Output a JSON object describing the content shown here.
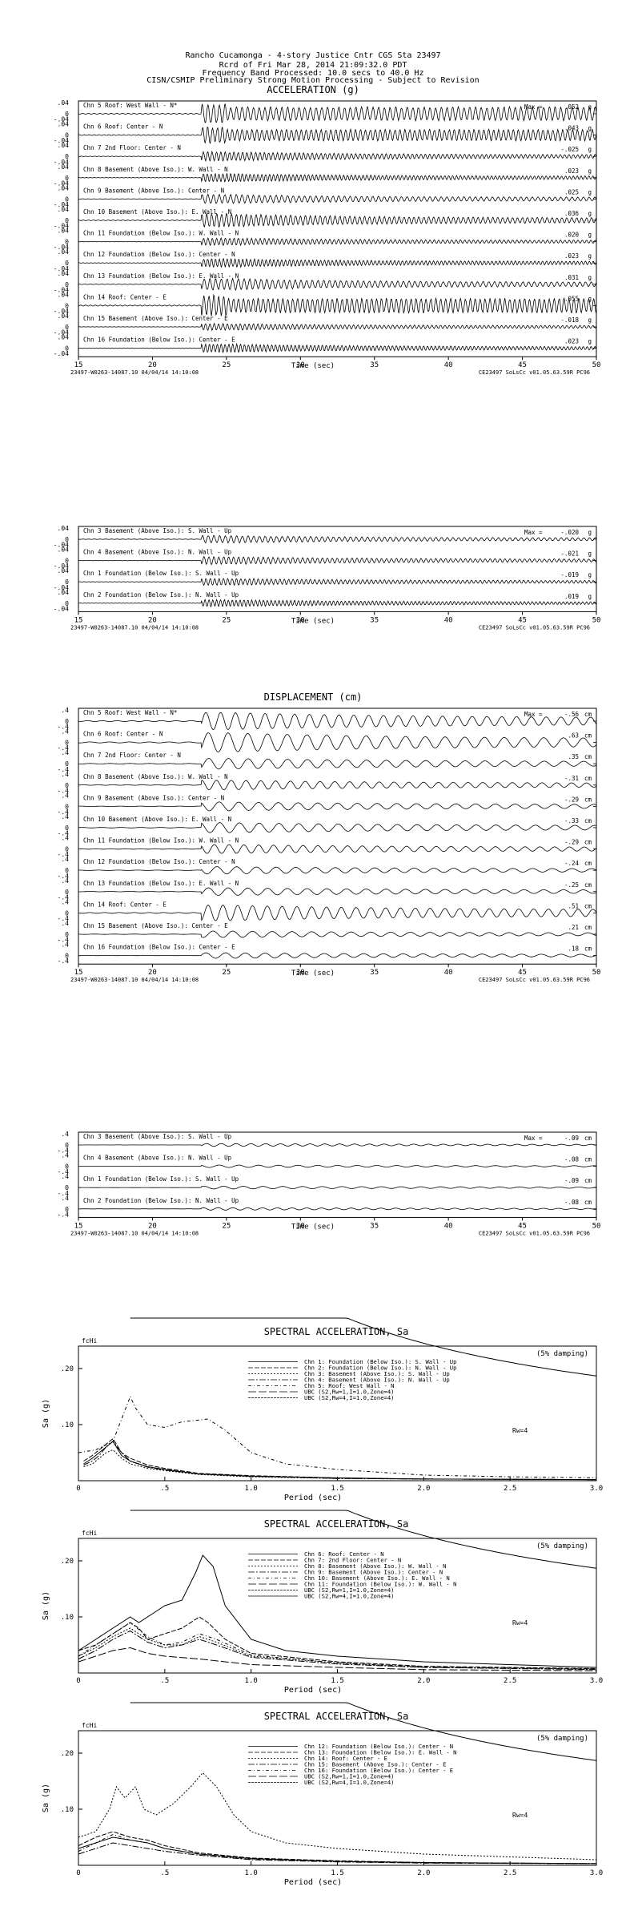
{
  "header": {
    "line1": "Rancho Cucamonga - 4-story Justice Cntr     CGS Sta 23497",
    "line2": "Rcrd of Fri Mar 28, 2014 21:09:32.0 PDT",
    "line3": "Frequency Band Processed: 10.0 secs to 40.0 Hz",
    "line4": "CISN/CSMIP Preliminary Strong Motion Processing - Subject to Revision"
  },
  "common": {
    "footer_left": "23497-W0263-14087.10 04/04/14 14:10:08",
    "footer_right": "CE23497  SoLsCc  v01.05.63.59R PC96",
    "time_label": "Time (sec)",
    "max_label": "Max =",
    "time_ticks": [
      "15",
      "20",
      "25",
      "30",
      "35",
      "40",
      "45",
      "50"
    ]
  },
  "chart_data": [
    {
      "type": "line",
      "title": "ACCELERATION (g)",
      "unit": "g",
      "xlabel": "Time (sec)",
      "xlim": [
        15,
        50
      ],
      "ytick": ".04",
      "channels": [
        {
          "label": "Chn 5  Roof: West Wall - N*",
          "max": ".052"
        },
        {
          "label": "Chn 6  Roof: Center - N",
          "max": ".043"
        },
        {
          "label": "Chn 7  2nd Floor: Center - N",
          "max": "-.025"
        },
        {
          "label": "Chn 8  Basement (Above Iso.): W. Wall - N",
          "max": ".023"
        },
        {
          "label": "Chn 9  Basement (Above Iso.): Center - N",
          "max": ".025"
        },
        {
          "label": "Chn 10  Basement (Above Iso.): E. Wall - N",
          "max": ".036"
        },
        {
          "label": "Chn 11  Foundation (Below Iso.): W. Wall - N",
          "max": ".020"
        },
        {
          "label": "Chn 12  Foundation (Below Iso.): Center - N",
          "max": ".023"
        },
        {
          "label": "Chn 13  Foundation (Below Iso.): E. Wall - N",
          "max": ".031"
        },
        {
          "label": "Chn 14  Roof: Center - E",
          "max": ".055"
        },
        {
          "label": "Chn 15  Basement (Above Iso.): Center - E",
          "max": "-.018"
        },
        {
          "label": "Chn 16  Foundation (Below Iso.): Center - E",
          "max": ".023"
        }
      ]
    },
    {
      "type": "line",
      "title": "",
      "unit": "g",
      "xlabel": "Time (sec)",
      "xlim": [
        15,
        50
      ],
      "ytick": ".04",
      "channels": [
        {
          "label": "Chn 3  Basement (Above Iso.): S. Wall - Up",
          "max": "-.020"
        },
        {
          "label": "Chn 4  Basement (Above Iso.): N. Wall - Up",
          "max": "-.021"
        },
        {
          "label": "Chn 1  Foundation (Below Iso.): S. Wall - Up",
          "max": "-.019"
        },
        {
          "label": "Chn 2  Foundation (Below Iso.): N. Wall - Up",
          "max": ".019"
        }
      ]
    },
    {
      "type": "line",
      "title": "DISPLACEMENT (cm)",
      "unit": "cm",
      "xlabel": "Time (sec)",
      "xlim": [
        15,
        50
      ],
      "ytick": ".4",
      "channels": [
        {
          "label": "Chn 5  Roof: West Wall - N*",
          "max": "-.56"
        },
        {
          "label": "Chn 6  Roof: Center - N",
          "max": ".63"
        },
        {
          "label": "Chn 7  2nd Floor: Center - N",
          "max": ".35"
        },
        {
          "label": "Chn 8  Basement (Above Iso.): W. Wall - N",
          "max": "-.31"
        },
        {
          "label": "Chn 9  Basement (Above Iso.): Center - N",
          "max": "-.29"
        },
        {
          "label": "Chn 10  Basement (Above Iso.): E. Wall - N",
          "max": "-.33"
        },
        {
          "label": "Chn 11  Foundation (Below Iso.): W. Wall - N",
          "max": "-.29"
        },
        {
          "label": "Chn 12  Foundation (Below Iso.): Center - N",
          "max": "-.24"
        },
        {
          "label": "Chn 13  Foundation (Below Iso.): E. Wall - N",
          "max": "-.25"
        },
        {
          "label": "Chn 14  Roof: Center - E",
          "max": ".51"
        },
        {
          "label": "Chn 15  Basement (Above Iso.): Center - E",
          "max": ".21"
        },
        {
          "label": "Chn 16  Foundation (Below Iso.): Center - E",
          "max": ".18"
        }
      ]
    },
    {
      "type": "line",
      "title": "",
      "unit": "cm",
      "xlabel": "Time (sec)",
      "xlim": [
        15,
        50
      ],
      "ytick": ".4",
      "channels": [
        {
          "label": "Chn 3  Basement (Above Iso.): S. Wall - Up",
          "max": "-.09"
        },
        {
          "label": "Chn 4  Basement (Above Iso.): N. Wall - Up",
          "max": "-.08"
        },
        {
          "label": "Chn 1  Foundation (Below Iso.): S. Wall - Up",
          "max": "-.09"
        },
        {
          "label": "Chn 2  Foundation (Below Iso.): N. Wall - Up",
          "max": "-.08"
        }
      ]
    },
    {
      "type": "line",
      "title": "SPECTRAL ACCELERATION, Sa",
      "xlabel": "Period (sec)",
      "ylabel": "Sa (g)",
      "xlim": [
        0,
        3.0
      ],
      "ylim": [
        0,
        0.24
      ],
      "xticks": [
        "0",
        ".5",
        "1.0",
        "1.5",
        "2.0",
        "2.5",
        "3.0"
      ],
      "yticks": [
        ".10",
        ".20"
      ],
      "damping": "(5% damping)",
      "fchi": "fcHi",
      "rw": "Rw=4",
      "legend": [
        "Chn 1: Foundation (Below Iso.): S. Wall - Up",
        "Chn 2: Foundation (Below Iso.): N. Wall - Up",
        "Chn 3: Basement (Above Iso.): S. Wall - Up",
        "Chn 4: Basement (Above Iso.): N. Wall - Up",
        "Chn 5: Roof: West Wall - N",
        "UBC (S2,Rw=1,I=1.0,Zone=4)",
        "UBC (S2,Rw=4,I=1.0,Zone=4)"
      ],
      "series": [
        {
          "x": [
            0.03,
            0.08,
            0.12,
            0.16,
            0.2,
            0.25,
            0.3,
            0.4,
            0.5,
            0.7,
            1.0,
            1.5,
            2.0,
            3.0
          ],
          "y": [
            0.03,
            0.04,
            0.05,
            0.06,
            0.07,
            0.045,
            0.035,
            0.025,
            0.02,
            0.012,
            0.008,
            0.005,
            0.003,
            0.002
          ]
        },
        {
          "x": [
            0.03,
            0.08,
            0.12,
            0.16,
            0.2,
            0.25,
            0.3,
            0.4,
            0.5,
            0.7,
            1.0,
            1.5,
            2.0,
            3.0
          ],
          "y": [
            0.035,
            0.045,
            0.055,
            0.065,
            0.075,
            0.05,
            0.04,
            0.028,
            0.022,
            0.013,
            0.009,
            0.005,
            0.003,
            0.002
          ]
        },
        {
          "x": [
            0.03,
            0.08,
            0.12,
            0.16,
            0.2,
            0.25,
            0.3,
            0.4,
            0.5,
            0.7,
            1.0,
            1.5,
            2.0,
            3.0
          ],
          "y": [
            0.025,
            0.03,
            0.04,
            0.05,
            0.055,
            0.04,
            0.03,
            0.022,
            0.018,
            0.011,
            0.007,
            0.004,
            0.003,
            0.002
          ]
        },
        {
          "x": [
            0.03,
            0.08,
            0.12,
            0.16,
            0.2,
            0.25,
            0.3,
            0.4,
            0.5,
            0.7,
            1.0,
            1.5,
            2.0,
            3.0
          ],
          "y": [
            0.028,
            0.035,
            0.045,
            0.06,
            0.07,
            0.05,
            0.035,
            0.024,
            0.019,
            0.012,
            0.008,
            0.004,
            0.003,
            0.002
          ]
        },
        {
          "x": [
            0.0,
            0.1,
            0.2,
            0.25,
            0.3,
            0.33,
            0.4,
            0.5,
            0.6,
            0.75,
            0.85,
            1.0,
            1.2,
            1.5,
            2.0,
            2.5,
            3.0
          ],
          "y": [
            0.05,
            0.055,
            0.07,
            0.11,
            0.15,
            0.13,
            0.1,
            0.095,
            0.105,
            0.11,
            0.09,
            0.05,
            0.03,
            0.02,
            0.01,
            0.007,
            0.005
          ]
        }
      ]
    },
    {
      "type": "line",
      "title": "SPECTRAL ACCELERATION, Sa",
      "xlabel": "Period (sec)",
      "ylabel": "Sa (g)",
      "xlim": [
        0,
        3.0
      ],
      "ylim": [
        0,
        0.24
      ],
      "xticks": [
        "0",
        ".5",
        "1.0",
        "1.5",
        "2.0",
        "2.5",
        "3.0"
      ],
      "yticks": [
        ".10",
        ".20"
      ],
      "damping": "(5% damping)",
      "fchi": "fcHi",
      "rw": "Rw=4",
      "legend": [
        "Chn 6: Roof: Center - N",
        "Chn 7: 2nd Floor: Center - N",
        "Chn 8: Basement (Above Iso.): W. Wall - N",
        "Chn 9: Basement (Above Iso.): Center - N",
        "Chn 10: Basement (Above Iso.): E. Wall - N",
        "Chn 11: Foundation (Below Iso.): W. Wall - N",
        "UBC (S2,Rw=1,I=1.0,Zone=4)",
        "UBC (S2,Rw=4,I=1.0,Zone=4)"
      ],
      "series": [
        {
          "x": [
            0.0,
            0.1,
            0.2,
            0.3,
            0.35,
            0.45,
            0.5,
            0.6,
            0.68,
            0.72,
            0.78,
            0.85,
            1.0,
            1.2,
            1.5,
            2.0,
            2.5,
            3.0
          ],
          "y": [
            0.04,
            0.06,
            0.08,
            0.1,
            0.09,
            0.11,
            0.12,
            0.13,
            0.18,
            0.21,
            0.19,
            0.12,
            0.06,
            0.04,
            0.03,
            0.02,
            0.015,
            0.01
          ]
        },
        {
          "x": [
            0.0,
            0.1,
            0.2,
            0.3,
            0.35,
            0.4,
            0.5,
            0.6,
            0.7,
            0.75,
            0.85,
            1.0,
            1.5,
            2.0,
            3.0
          ],
          "y": [
            0.04,
            0.05,
            0.07,
            0.09,
            0.08,
            0.06,
            0.07,
            0.08,
            0.1,
            0.09,
            0.06,
            0.035,
            0.02,
            0.012,
            0.008
          ]
        },
        {
          "x": [
            0.0,
            0.1,
            0.2,
            0.3,
            0.4,
            0.5,
            0.6,
            0.7,
            0.8,
            1.0,
            1.5,
            2.0,
            3.0
          ],
          "y": [
            0.03,
            0.045,
            0.065,
            0.08,
            0.06,
            0.05,
            0.05,
            0.065,
            0.055,
            0.03,
            0.018,
            0.01,
            0.007
          ]
        },
        {
          "x": [
            0.0,
            0.1,
            0.2,
            0.3,
            0.4,
            0.5,
            0.6,
            0.7,
            0.8,
            1.0,
            1.5,
            2.0,
            3.0
          ],
          "y": [
            0.025,
            0.04,
            0.06,
            0.075,
            0.055,
            0.045,
            0.05,
            0.06,
            0.05,
            0.028,
            0.016,
            0.01,
            0.006
          ]
        },
        {
          "x": [
            0.0,
            0.1,
            0.2,
            0.3,
            0.4,
            0.5,
            0.6,
            0.7,
            0.8,
            1.0,
            1.5,
            2.0,
            3.0
          ],
          "y": [
            0.03,
            0.05,
            0.07,
            0.09,
            0.065,
            0.05,
            0.055,
            0.07,
            0.06,
            0.032,
            0.018,
            0.011,
            0.007
          ]
        },
        {
          "x": [
            0.0,
            0.1,
            0.2,
            0.3,
            0.4,
            0.5,
            0.7,
            1.0,
            1.5,
            2.0,
            3.0
          ],
          "y": [
            0.02,
            0.03,
            0.04,
            0.045,
            0.035,
            0.03,
            0.025,
            0.015,
            0.01,
            0.006,
            0.004
          ]
        }
      ]
    },
    {
      "type": "line",
      "title": "SPECTRAL ACCELERATION, Sa",
      "xlabel": "Period (sec)",
      "ylabel": "Sa (g)",
      "xlim": [
        0,
        3.0
      ],
      "ylim": [
        0,
        0.24
      ],
      "xticks": [
        "0",
        ".5",
        "1.0",
        "1.5",
        "2.0",
        "2.5",
        "3.0"
      ],
      "yticks": [
        ".10",
        ".20"
      ],
      "damping": "(5% damping)",
      "fchi": "fcHi",
      "rw": "Rw=4",
      "legend": [
        "Chn 12: Foundation (Below Iso.): Center - N",
        "Chn 13: Foundation (Below Iso.): E. Wall - N",
        "Chn 14: Roof: Center - E",
        "Chn 15: Basement (Above Iso.): Center - E",
        "Chn 16: Foundation (Below Iso.): Center - E",
        "UBC (S2,Rw=1,I=1.0,Zone=4)",
        "UBC (S2,Rw=4,I=1.0,Zone=4)"
      ],
      "series": [
        {
          "x": [
            0.0,
            0.1,
            0.2,
            0.3,
            0.4,
            0.5,
            0.7,
            1.0,
            1.5,
            2.0,
            3.0
          ],
          "y": [
            0.03,
            0.04,
            0.05,
            0.045,
            0.04,
            0.03,
            0.02,
            0.012,
            0.007,
            0.005,
            0.003
          ]
        },
        {
          "x": [
            0.0,
            0.1,
            0.2,
            0.3,
            0.4,
            0.5,
            0.7,
            1.0,
            1.5,
            2.0,
            3.0
          ],
          "y": [
            0.035,
            0.05,
            0.06,
            0.05,
            0.045,
            0.035,
            0.022,
            0.013,
            0.008,
            0.005,
            0.003
          ]
        },
        {
          "x": [
            0.0,
            0.1,
            0.18,
            0.22,
            0.27,
            0.33,
            0.38,
            0.45,
            0.55,
            0.65,
            0.72,
            0.8,
            0.9,
            1.0,
            1.2,
            1.5,
            2.0,
            2.5,
            3.0
          ],
          "y": [
            0.05,
            0.06,
            0.1,
            0.14,
            0.12,
            0.14,
            0.1,
            0.09,
            0.11,
            0.14,
            0.165,
            0.14,
            0.09,
            0.06,
            0.04,
            0.03,
            0.02,
            0.015,
            0.01
          ]
        },
        {
          "x": [
            0.0,
            0.1,
            0.2,
            0.3,
            0.4,
            0.5,
            0.7,
            1.0,
            1.5,
            2.0,
            3.0
          ],
          "y": [
            0.02,
            0.03,
            0.04,
            0.035,
            0.03,
            0.025,
            0.018,
            0.01,
            0.006,
            0.004,
            0.003
          ]
        },
        {
          "x": [
            0.0,
            0.1,
            0.2,
            0.3,
            0.4,
            0.5,
            0.7,
            1.0,
            1.5,
            2.0,
            3.0
          ],
          "y": [
            0.025,
            0.04,
            0.055,
            0.045,
            0.04,
            0.03,
            0.02,
            0.011,
            0.007,
            0.004,
            0.003
          ]
        }
      ]
    }
  ]
}
